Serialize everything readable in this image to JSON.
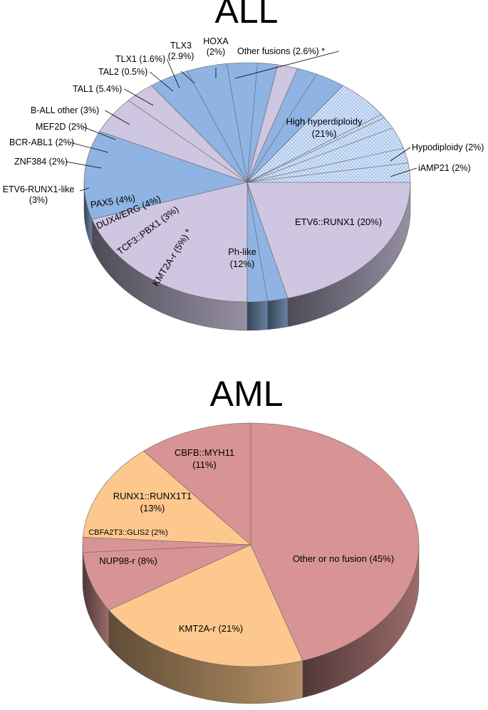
{
  "chart_data": [
    {
      "type": "pie",
      "title": "ALL",
      "slices": [
        {
          "label": "High hyperdiploidy",
          "label_lines": [
            "High hyperdiploidy",
            "(21%)"
          ],
          "value": 21,
          "color": "#cfc6e1",
          "pattern": false,
          "label_inside": true
        },
        {
          "label": "Hypodiploidy (2%)",
          "value": 2,
          "color": "#8fb4e3",
          "pattern": false,
          "label_inside": false
        },
        {
          "label": "iAMP21 (2%)",
          "value": 2,
          "color": "#8fb4e3",
          "pattern": false,
          "label_inside": false
        },
        {
          "label": "ETV6::RUNX1 (20%)",
          "value": 20,
          "color": "#cfc6e1",
          "pattern": false,
          "label_inside": true
        },
        {
          "label": "Ph-like",
          "label_lines": [
            "Ph-like",
            "(12%)"
          ],
          "value": 12,
          "color": "#8fb4e3",
          "pattern": false,
          "label_inside": true
        },
        {
          "label": "KMT2A-r (5%) *",
          "value": 5,
          "color": "#cfc6e1",
          "pattern": false,
          "label_inside": true
        },
        {
          "label": "TCF3::PBX1 (3%)",
          "value": 3,
          "color": "#cfc6e1",
          "pattern": false,
          "label_inside": true
        },
        {
          "label": "DUX4/ERG (4%)",
          "value": 4,
          "color": "#8fb4e3",
          "pattern": false,
          "label_inside": true
        },
        {
          "label": "PAX5 (4%)",
          "value": 4,
          "color": "#8fb4e3",
          "pattern": false,
          "label_inside": true
        },
        {
          "label": "ETV6-RUNX1-like",
          "label_lines": [
            "ETV6-RUNX1-like",
            "(3%)"
          ],
          "value": 3,
          "color": "#8fb4e3",
          "pattern": false,
          "label_inside": false
        },
        {
          "label": "ZNF384 (2%)",
          "value": 2,
          "color": "#8fb4e3",
          "pattern": false,
          "label_inside": false
        },
        {
          "label": "BCR-ABL1 (2%)",
          "value": 2,
          "color": "#cfc6e1",
          "pattern": false,
          "label_inside": false
        },
        {
          "label": "MEF2D (2%)",
          "value": 2,
          "color": "#8fb4e3",
          "pattern": false,
          "label_inside": false
        },
        {
          "label": "B-ALL other (3%)",
          "value": 3,
          "color": "#8fb4e3",
          "pattern": false,
          "label_inside": false
        },
        {
          "label": "TAL1 (5.4%)",
          "value": 5.4,
          "color": "#8fb4e3",
          "pattern": true,
          "label_inside": false
        },
        {
          "label": "TAL2 (0.5%)",
          "value": 0.5,
          "color": "#8fb4e3",
          "pattern": true,
          "label_inside": false
        },
        {
          "label": "TLX1 (1.6%)",
          "value": 1.6,
          "color": "#8fb4e3",
          "pattern": true,
          "label_inside": false
        },
        {
          "label": "TLX3",
          "label_lines": [
            "TLX3",
            "(2.9%)"
          ],
          "value": 2.9,
          "color": "#8fb4e3",
          "pattern": true,
          "label_inside": false
        },
        {
          "label": "HOXA",
          "label_lines": [
            "HOXA",
            "(2%)"
          ],
          "value": 2,
          "color": "#8fb4e3",
          "pattern": true,
          "label_inside": false
        },
        {
          "label": "Other fusions (2.6%) *",
          "value": 2.6,
          "color": "#8fb4e3",
          "pattern": true,
          "label_inside": false
        }
      ]
    },
    {
      "type": "pie",
      "title": "AML",
      "slices": [
        {
          "label": "Other or no fusion (45%)",
          "value": 45,
          "color": "#d89494",
          "label_inside": true
        },
        {
          "label": "KMT2A-r (21%)",
          "value": 21,
          "color": "#fcc88e",
          "label_inside": true
        },
        {
          "label": "NUP98-r (8%)",
          "value": 8,
          "color": "#d89494",
          "label_inside": true
        },
        {
          "label": "CBFA2T3::GLIS2 (2%)",
          "value": 2,
          "color": "#d89494",
          "label_inside": true
        },
        {
          "label": "RUNX1::RUNX1T1",
          "label_lines": [
            "RUNX1::RUNX1T1",
            "(13%)"
          ],
          "value": 13,
          "color": "#fcc88e",
          "label_inside": true
        },
        {
          "label": "CBFB::MYH11",
          "label_lines": [
            "CBFB::MYH11",
            "(11%)"
          ],
          "value": 11,
          "color": "#d89494",
          "label_inside": true
        }
      ]
    }
  ]
}
